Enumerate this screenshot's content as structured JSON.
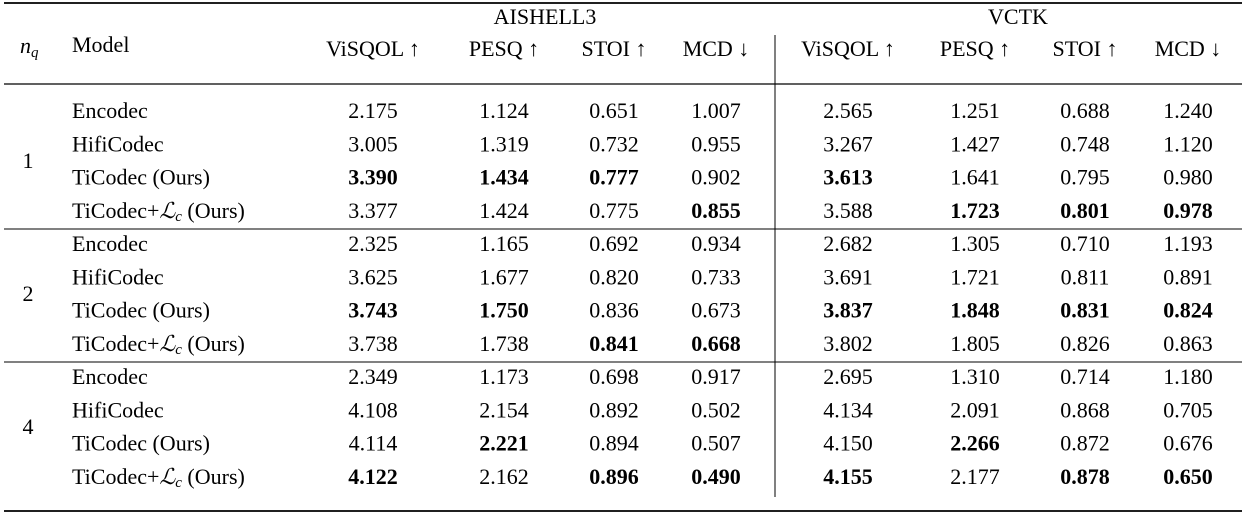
{
  "table": {
    "groups": [
      "AISHELL3",
      "VCTK"
    ],
    "nq_header": {
      "symbol": "n",
      "sub": "q"
    },
    "model_header": "Model",
    "metrics": [
      "ViSQOL ↑",
      "PESQ ↑",
      "STOI ↑",
      "MCD ↓",
      "ViSQOL ↑",
      "PESQ ↑",
      "STOI ↑",
      "MCD ↓"
    ],
    "blocks": [
      {
        "nq": "1",
        "rows": [
          {
            "model": "Encodec",
            "cells": [
              "2.175",
              "1.124",
              "0.651",
              "1.007",
              "2.565",
              "1.251",
              "0.688",
              "1.240"
            ],
            "bold": [
              false,
              false,
              false,
              false,
              false,
              false,
              false,
              false
            ]
          },
          {
            "model": "HifiCodec",
            "cells": [
              "3.005",
              "1.319",
              "0.732",
              "0.955",
              "3.267",
              "1.427",
              "0.748",
              "1.120"
            ],
            "bold": [
              false,
              false,
              false,
              false,
              false,
              false,
              false,
              false
            ]
          },
          {
            "model": "TiCodec (Ours)",
            "cells": [
              "3.390",
              "1.434",
              "0.777",
              "0.902",
              "3.613",
              "1.641",
              "0.795",
              "0.980"
            ],
            "bold": [
              true,
              true,
              true,
              false,
              true,
              false,
              false,
              false
            ]
          },
          {
            "model": {
              "prefix": "TiCodec+",
              "symbol": "ℒ",
              "sub": "c",
              "suffix": " (Ours)"
            },
            "cells": [
              "3.377",
              "1.424",
              "0.775",
              "0.855",
              "3.588",
              "1.723",
              "0.801",
              "0.978"
            ],
            "bold": [
              false,
              false,
              false,
              true,
              false,
              true,
              true,
              true
            ]
          }
        ]
      },
      {
        "nq": "2",
        "rows": [
          {
            "model": "Encodec",
            "cells": [
              "2.325",
              "1.165",
              "0.692",
              "0.934",
              "2.682",
              "1.305",
              "0.710",
              "1.193"
            ],
            "bold": [
              false,
              false,
              false,
              false,
              false,
              false,
              false,
              false
            ]
          },
          {
            "model": "HifiCodec",
            "cells": [
              "3.625",
              "1.677",
              "0.820",
              "0.733",
              "3.691",
              "1.721",
              "0.811",
              "0.891"
            ],
            "bold": [
              false,
              false,
              false,
              false,
              false,
              false,
              false,
              false
            ]
          },
          {
            "model": "TiCodec (Ours)",
            "cells": [
              "3.743",
              "1.750",
              "0.836",
              "0.673",
              "3.837",
              "1.848",
              "0.831",
              "0.824"
            ],
            "bold": [
              true,
              true,
              false,
              false,
              true,
              true,
              true,
              true
            ]
          },
          {
            "model": {
              "prefix": "TiCodec+",
              "symbol": "ℒ",
              "sub": "c",
              "suffix": " (Ours)"
            },
            "cells": [
              "3.738",
              "1.738",
              "0.841",
              "0.668",
              "3.802",
              "1.805",
              "0.826",
              "0.863"
            ],
            "bold": [
              false,
              false,
              true,
              true,
              false,
              false,
              false,
              false
            ]
          }
        ]
      },
      {
        "nq": "4",
        "rows": [
          {
            "model": "Encodec",
            "cells": [
              "2.349",
              "1.173",
              "0.698",
              "0.917",
              "2.695",
              "1.310",
              "0.714",
              "1.180"
            ],
            "bold": [
              false,
              false,
              false,
              false,
              false,
              false,
              false,
              false
            ]
          },
          {
            "model": "HifiCodec",
            "cells": [
              "4.108",
              "2.154",
              "0.892",
              "0.502",
              "4.134",
              "2.091",
              "0.868",
              "0.705"
            ],
            "bold": [
              false,
              false,
              false,
              false,
              false,
              false,
              false,
              false
            ]
          },
          {
            "model": "TiCodec (Ours)",
            "cells": [
              "4.114",
              "2.221",
              "0.894",
              "0.507",
              "4.150",
              "2.266",
              "0.872",
              "0.676"
            ],
            "bold": [
              false,
              true,
              false,
              false,
              false,
              true,
              false,
              false
            ]
          },
          {
            "model": {
              "prefix": "TiCodec+",
              "symbol": "ℒ",
              "sub": "c",
              "suffix": " (Ours)"
            },
            "cells": [
              "4.122",
              "2.162",
              "0.896",
              "0.490",
              "4.155",
              "2.177",
              "0.878",
              "0.650"
            ],
            "bold": [
              true,
              false,
              true,
              true,
              true,
              false,
              true,
              true
            ]
          }
        ]
      }
    ]
  }
}
